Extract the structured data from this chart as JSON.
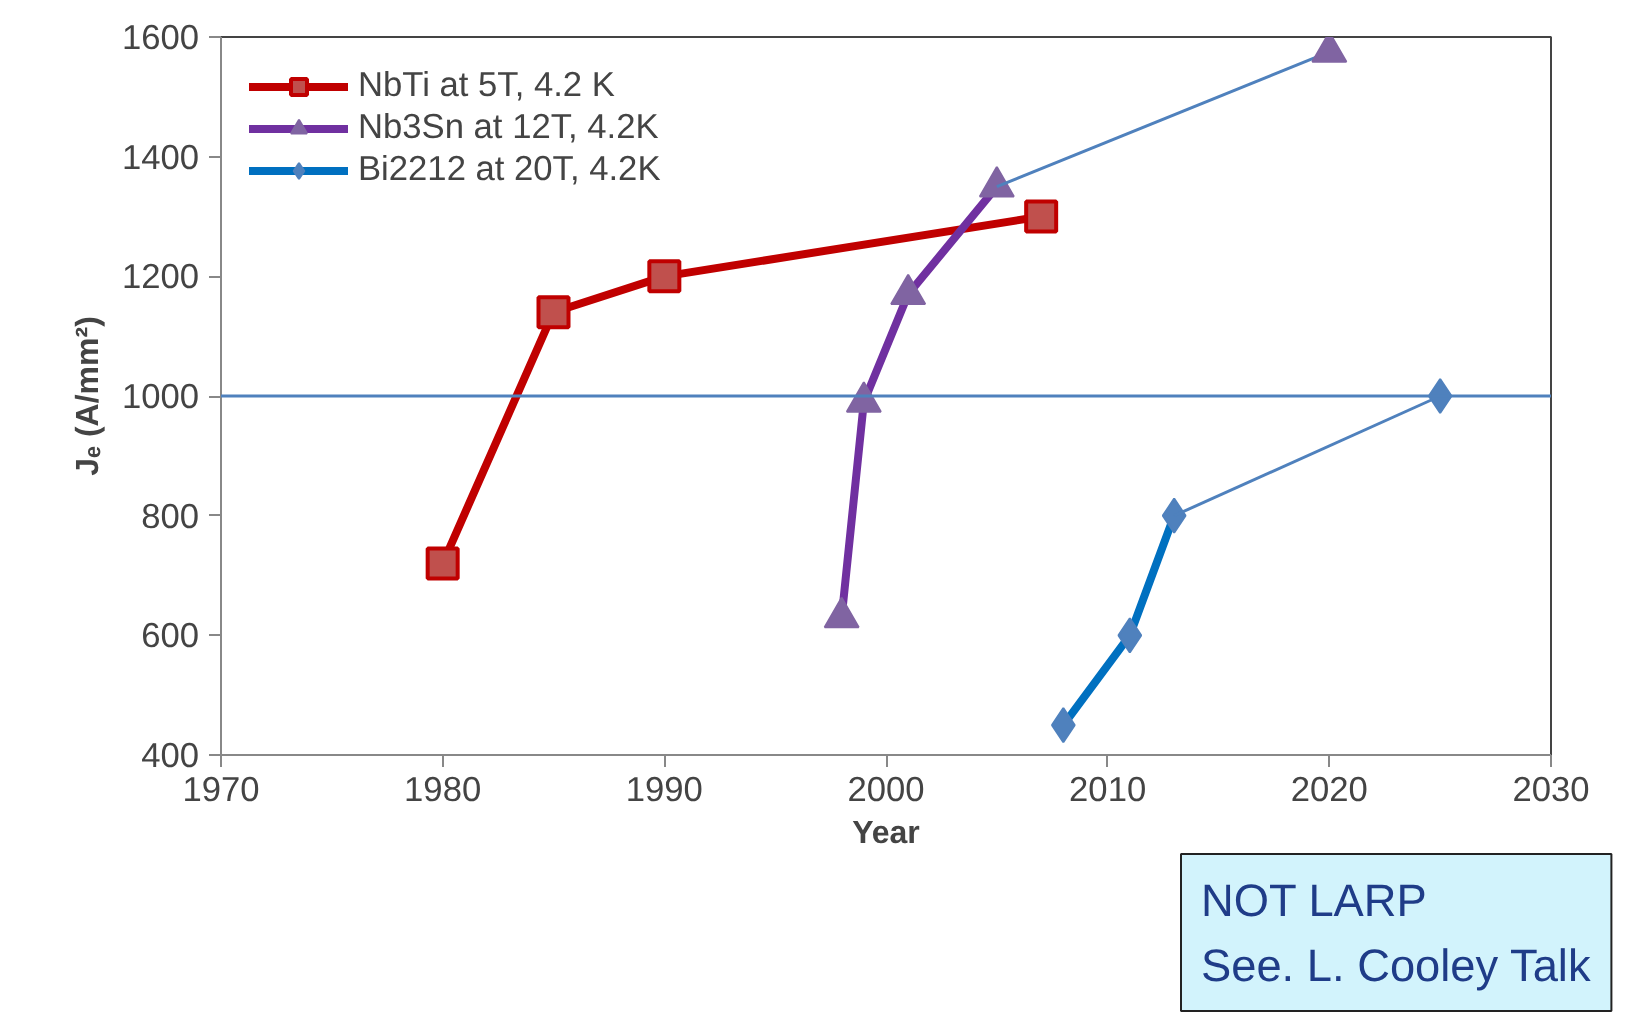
{
  "chart_data": {
    "type": "line",
    "xlabel": "Year",
    "ylabel": "Jₑ (A/mm²)",
    "xlim": [
      1970,
      2030
    ],
    "xticks": [
      1970,
      1980,
      1990,
      2000,
      2010,
      2020,
      2030
    ],
    "ylim": [
      400,
      1600
    ],
    "yticks": [
      400,
      600,
      800,
      1000,
      1200,
      1400,
      1600
    ],
    "grid": false,
    "legend": "top left",
    "line_style": "solid",
    "series": [
      {
        "name": "NbTi at 5T, 4.2 K",
        "color": "#c00000",
        "marker": "square",
        "x": [
          1980,
          1985,
          1990,
          2007
        ],
        "values": [
          720,
          1140,
          1200,
          1300
        ]
      },
      {
        "name": "Nb3Sn at 12T, 4.2K",
        "color": "#7030a0",
        "marker": "triangle",
        "x": [
          1998,
          1999,
          2001,
          2005
        ],
        "values": [
          630,
          990,
          1170,
          1350
        ]
      },
      {
        "name": "Bi2212 at 20T, 4.2K",
        "color": "#0070c0",
        "marker": "diamond",
        "x": [
          2008,
          2011,
          2013
        ],
        "values": [
          450,
          600,
          800
        ]
      },
      {
        "type": "line",
        "color": "#4f81bd",
        "x": [
          2005,
          2020
        ],
        "values": [
          1350,
          1575
        ]
      },
      {
        "type": "line",
        "color": "#4f81bd",
        "x": [
          2013,
          2025
        ],
        "values": [
          800,
          1000
        ]
      },
      {
        "type": "scatter",
        "color": "#8064a2",
        "marker": "triangle",
        "x": [
          2020
        ],
        "values": [
          1575
        ]
      },
      {
        "type": "scatter",
        "color": "#4f81bd",
        "marker": "diamond",
        "x": [
          2025
        ],
        "values": [
          1000
        ]
      }
    ],
    "ref_lines": [
      {
        "axis": "y",
        "value": 1000,
        "color": "#4f81bd"
      }
    ],
    "annotations": [
      "NOT LARP\nSee. L. Cooley Talk"
    ]
  }
}
